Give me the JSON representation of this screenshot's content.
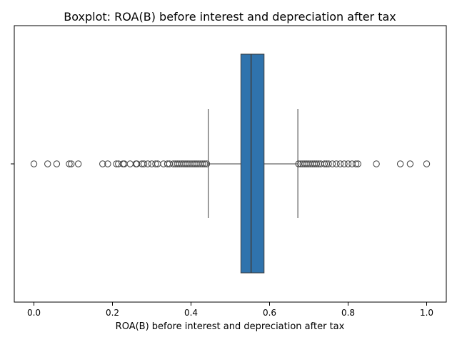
{
  "chart_data": {
    "type": "boxplot",
    "title": "Boxplot:  ROA(B) before interest and depreciation after tax",
    "xlabel": "ROA(B) before interest and depreciation after tax",
    "ylabel": "",
    "xlim": [
      -0.05,
      1.05
    ],
    "xticks": [
      0.0,
      0.2,
      0.4,
      0.6,
      0.8,
      1.0
    ],
    "xtick_labels": [
      "0.0",
      "0.2",
      "0.4",
      "0.6",
      "0.8",
      "1.0"
    ],
    "orientation": "horizontal",
    "box": {
      "q1": 0.527,
      "median": 0.553,
      "q3": 0.586,
      "whisker_low": 0.444,
      "whisker_high": 0.672,
      "color": "#2f73ad"
    },
    "outliers_low": [
      0.0,
      0.035,
      0.058,
      0.09,
      0.095,
      0.113,
      0.175,
      0.188,
      0.21,
      0.215,
      0.227,
      0.23,
      0.245,
      0.26,
      0.262,
      0.275,
      0.28,
      0.29,
      0.3,
      0.31,
      0.315,
      0.33,
      0.34,
      0.345,
      0.355,
      0.36,
      0.365,
      0.37,
      0.375,
      0.38,
      0.385,
      0.39,
      0.395,
      0.4,
      0.405,
      0.41,
      0.415,
      0.42,
      0.425,
      0.43,
      0.435,
      0.44
    ],
    "outliers_high": [
      0.674,
      0.68,
      0.685,
      0.69,
      0.695,
      0.7,
      0.705,
      0.71,
      0.715,
      0.72,
      0.725,
      0.73,
      0.74,
      0.745,
      0.75,
      0.76,
      0.77,
      0.78,
      0.79,
      0.8,
      0.81,
      0.82,
      0.825,
      0.872,
      0.933,
      0.958,
      1.0
    ],
    "grid": false,
    "legend": "none"
  }
}
